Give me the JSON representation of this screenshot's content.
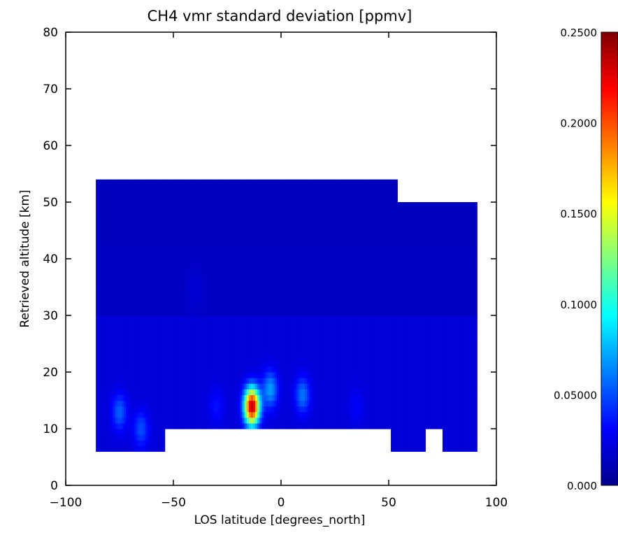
{
  "chart_data": {
    "type": "heatmap",
    "title": "CH4 vmr standard deviation [ppmv]",
    "xlabel": "LOS latitude [degrees_north]",
    "ylabel": "Retrieved altitude [km]",
    "xlim": [
      -100,
      100
    ],
    "ylim": [
      0,
      80
    ],
    "x_ticks": [
      "−100",
      "−50",
      "0",
      "50",
      "100"
    ],
    "x_tick_values": [
      -100,
      -50,
      0,
      50,
      100
    ],
    "y_ticks": [
      "0",
      "10",
      "20",
      "30",
      "40",
      "50",
      "60",
      "70",
      "80"
    ],
    "y_tick_values": [
      0,
      10,
      20,
      30,
      40,
      50,
      60,
      70,
      80
    ],
    "colorbar": {
      "range": [
        0.0,
        0.25
      ],
      "tick_labels": [
        "0.000",
        "0.05000",
        "0.1000",
        "0.1500",
        "0.2000",
        "0.2500"
      ],
      "tick_values": [
        0.0,
        0.05,
        0.1,
        0.15,
        0.2,
        0.25
      ],
      "colormap": "jet"
    },
    "field": {
      "background_value": 0.02,
      "upper_background_value": 0.013,
      "regions": [
        {
          "x": [
            -86,
            54
          ],
          "y": [
            10,
            54
          ]
        },
        {
          "x": [
            54,
            91
          ],
          "y": [
            10,
            50
          ]
        },
        {
          "x": [
            -86,
            -54
          ],
          "y": [
            6,
            10
          ]
        },
        {
          "x": [
            51,
            67
          ],
          "y": [
            6,
            10
          ]
        },
        {
          "x": [
            75,
            91
          ],
          "y": [
            6,
            10
          ]
        }
      ],
      "features": [
        {
          "x": -13.5,
          "y": 14,
          "peak": 0.24
        },
        {
          "x": -5,
          "y": 17,
          "peak": 0.07
        },
        {
          "x": 10,
          "y": 16,
          "peak": 0.06
        },
        {
          "x": -75,
          "y": 13,
          "peak": 0.055
        },
        {
          "x": -65,
          "y": 10,
          "peak": 0.05
        },
        {
          "x": -30,
          "y": 14,
          "peak": 0.035
        },
        {
          "x": 35,
          "y": 14,
          "peak": 0.03
        },
        {
          "x": -40,
          "y": 35,
          "peak": 0.025
        }
      ]
    }
  }
}
